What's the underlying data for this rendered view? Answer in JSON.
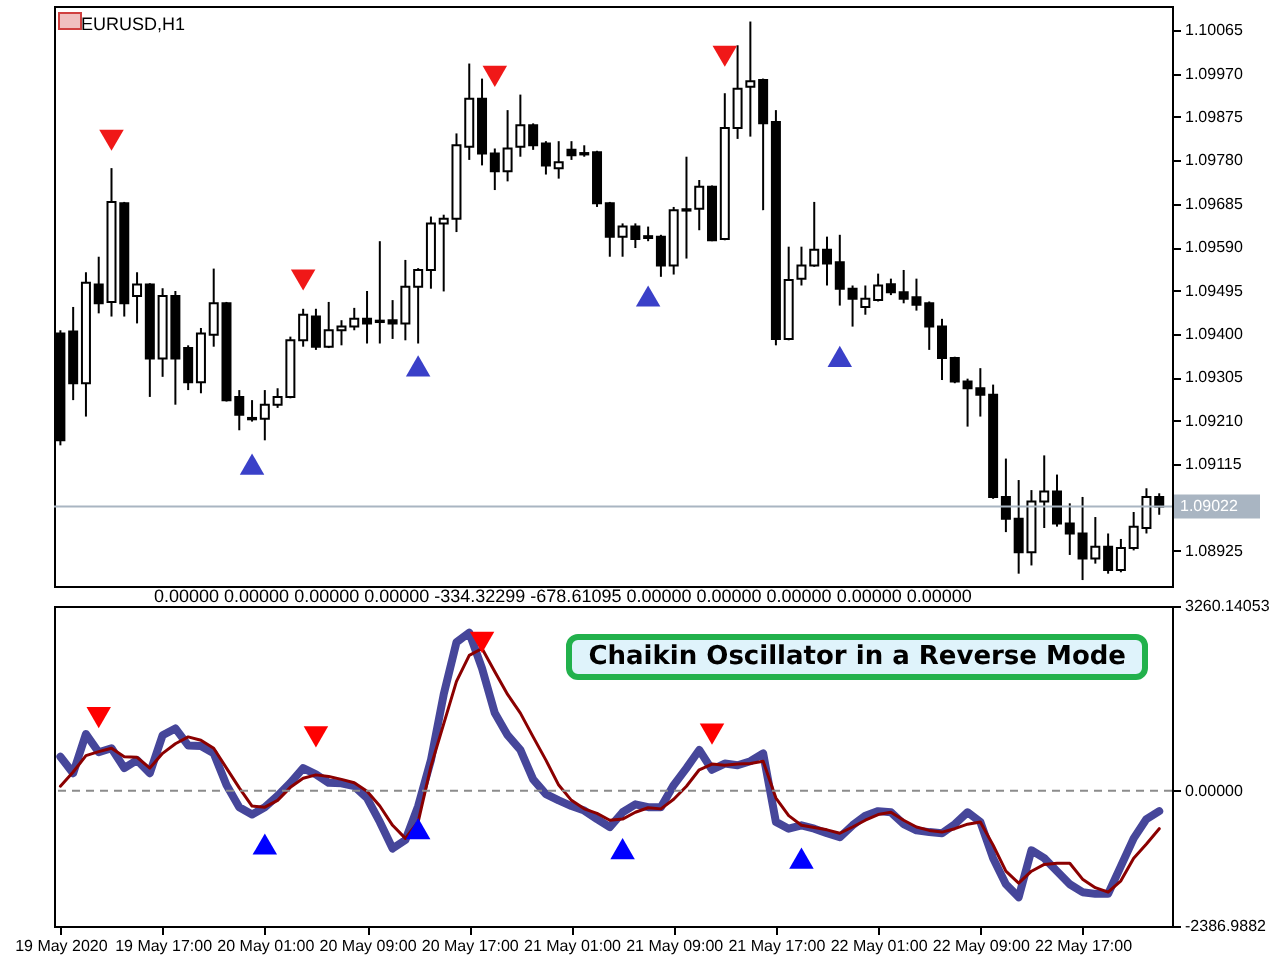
{
  "chart_data": [
    {
      "type": "candlestick",
      "title": "EURUSD,H1",
      "x": [
        "2020-05-19T09:00",
        "2020-05-19T10:00",
        "2020-05-19T11:00",
        "2020-05-19T12:00",
        "2020-05-19T13:00",
        "2020-05-19T14:00",
        "2020-05-19T15:00",
        "2020-05-19T16:00",
        "2020-05-19T17:00",
        "2020-05-19T18:00",
        "2020-05-19T19:00",
        "2020-05-19T20:00",
        "2020-05-19T21:00",
        "2020-05-19T22:00",
        "2020-05-19T23:00",
        "2020-05-20T00:00",
        "2020-05-20T01:00",
        "2020-05-20T02:00",
        "2020-05-20T03:00",
        "2020-05-20T04:00",
        "2020-05-20T05:00",
        "2020-05-20T06:00",
        "2020-05-20T07:00",
        "2020-05-20T08:00",
        "2020-05-20T09:00",
        "2020-05-20T10:00",
        "2020-05-20T11:00",
        "2020-05-20T12:00",
        "2020-05-20T13:00",
        "2020-05-20T14:00",
        "2020-05-20T15:00",
        "2020-05-20T16:00",
        "2020-05-20T17:00",
        "2020-05-20T18:00",
        "2020-05-20T19:00",
        "2020-05-20T20:00",
        "2020-05-20T21:00",
        "2020-05-20T22:00",
        "2020-05-20T23:00",
        "2020-05-21T00:00",
        "2020-05-21T01:00",
        "2020-05-21T02:00",
        "2020-05-21T03:00",
        "2020-05-21T04:00",
        "2020-05-21T05:00",
        "2020-05-21T06:00",
        "2020-05-21T07:00",
        "2020-05-21T08:00",
        "2020-05-21T09:00",
        "2020-05-21T10:00",
        "2020-05-21T11:00",
        "2020-05-21T12:00",
        "2020-05-21T13:00",
        "2020-05-21T14:00",
        "2020-05-21T15:00",
        "2020-05-21T16:00",
        "2020-05-21T17:00",
        "2020-05-21T18:00",
        "2020-05-21T19:00",
        "2020-05-21T20:00",
        "2020-05-21T21:00",
        "2020-05-21T22:00",
        "2020-05-21T23:00",
        "2020-05-22T00:00",
        "2020-05-22T01:00",
        "2020-05-22T02:00",
        "2020-05-22T03:00",
        "2020-05-22T04:00",
        "2020-05-22T05:00",
        "2020-05-22T06:00",
        "2020-05-22T07:00",
        "2020-05-22T08:00",
        "2020-05-22T09:00",
        "2020-05-22T10:00",
        "2020-05-22T11:00",
        "2020-05-22T12:00",
        "2020-05-22T13:00",
        "2020-05-22T14:00",
        "2020-05-22T15:00",
        "2020-05-22T16:00",
        "2020-05-22T17:00",
        "2020-05-22T18:00",
        "2020-05-22T19:00",
        "2020-05-22T20:00",
        "2020-05-22T21:00",
        "2020-05-22T22:00",
        "2020-05-22T23:00"
      ],
      "ohlc": [
        [
          1.09401,
          1.09408,
          1.09156,
          1.09167
        ],
        [
          1.09405,
          1.09459,
          1.09255,
          1.09292
        ],
        [
          1.09292,
          1.09535,
          1.09219,
          1.09512
        ],
        [
          1.09508,
          1.09569,
          1.09445,
          1.09467
        ],
        [
          1.0947,
          1.09763,
          1.09438,
          1.09689
        ],
        [
          1.09686,
          1.09689,
          1.09438,
          1.09467
        ],
        [
          1.09483,
          1.09535,
          1.09423,
          1.09508
        ],
        [
          1.09508,
          1.09511,
          1.09262,
          1.09346
        ],
        [
          1.09346,
          1.095,
          1.09306,
          1.09483
        ],
        [
          1.09483,
          1.09494,
          1.09245,
          1.09346
        ],
        [
          1.09369,
          1.09375,
          1.09277,
          1.09294
        ],
        [
          1.09294,
          1.09413,
          1.0927,
          1.09401
        ],
        [
          1.09398,
          1.09543,
          1.09372,
          1.09467
        ],
        [
          1.09467,
          1.0947,
          1.09252,
          1.09255
        ],
        [
          1.09262,
          1.09277,
          1.09189,
          1.09223
        ],
        [
          1.09216,
          1.09255,
          1.09208,
          1.09213
        ],
        [
          1.09214,
          1.09277,
          1.09167,
          1.09245
        ],
        [
          1.09245,
          1.09281,
          1.09238,
          1.09262
        ],
        [
          1.09262,
          1.09394,
          1.09259,
          1.09386
        ],
        [
          1.09386,
          1.09455,
          1.09372,
          1.09442
        ],
        [
          1.09438,
          1.09455,
          1.09365,
          1.09372
        ],
        [
          1.09372,
          1.0947,
          1.09369,
          1.09408
        ],
        [
          1.09408,
          1.0943,
          1.09375,
          1.09416
        ],
        [
          1.09416,
          1.09457,
          1.09408,
          1.09433
        ],
        [
          1.09433,
          1.09494,
          1.09379,
          1.09423
        ],
        [
          1.09429,
          1.09603,
          1.09379,
          1.09426
        ],
        [
          1.0943,
          1.09474,
          1.09389,
          1.09423
        ],
        [
          1.09423,
          1.09562,
          1.09386,
          1.09503
        ],
        [
          1.09503,
          1.09544,
          1.09379,
          1.0954
        ],
        [
          1.0954,
          1.09657,
          1.09499,
          1.09642
        ],
        [
          1.09642,
          1.09661,
          1.09493,
          1.09652
        ],
        [
          1.09652,
          1.09839,
          1.09623,
          1.09813
        ],
        [
          1.0981,
          1.09992,
          1.09781,
          1.09915
        ],
        [
          1.09915,
          1.09959,
          1.09769,
          1.09795
        ],
        [
          1.09795,
          1.09806,
          1.09715,
          1.09756
        ],
        [
          1.09756,
          1.0989,
          1.09734,
          1.09806
        ],
        [
          1.0981,
          1.09924,
          1.09788,
          1.09857
        ],
        [
          1.09857,
          1.09861,
          1.09803,
          1.09813
        ],
        [
          1.09817,
          1.09822,
          1.09749,
          1.09769
        ],
        [
          1.09763,
          1.09822,
          1.0974,
          1.09776
        ],
        [
          1.09803,
          1.09822,
          1.09781,
          1.09791
        ],
        [
          1.09796,
          1.09813,
          1.09788,
          1.09793
        ],
        [
          1.09798,
          1.09801,
          1.09678,
          1.09686
        ],
        [
          1.09686,
          1.09689,
          1.09569,
          1.09613
        ],
        [
          1.09613,
          1.09642,
          1.09569,
          1.09635
        ],
        [
          1.09635,
          1.09642,
          1.09588,
          1.09608
        ],
        [
          1.09614,
          1.09635,
          1.09603,
          1.0961
        ],
        [
          1.09613,
          1.09617,
          1.09525,
          1.0955
        ],
        [
          1.0955,
          1.09678,
          1.0953,
          1.09671
        ],
        [
          1.09673,
          1.09788,
          1.09565,
          1.0967
        ],
        [
          1.09674,
          1.09737,
          1.09627,
          1.09722
        ],
        [
          1.09722,
          1.09725,
          1.09603,
          1.09605
        ],
        [
          1.09608,
          1.09927,
          1.09605,
          1.09851
        ],
        [
          1.09851,
          1.10032,
          1.09827,
          1.09937
        ],
        [
          1.09941,
          1.10084,
          1.09832,
          1.09953
        ],
        [
          1.09956,
          1.09959,
          1.09671,
          1.09861
        ],
        [
          1.09864,
          1.0989,
          1.09375,
          1.09389
        ],
        [
          1.09389,
          1.09591,
          1.09386,
          1.09518
        ],
        [
          1.09521,
          1.09591,
          1.09506,
          1.0955
        ],
        [
          1.0955,
          1.09689,
          1.09547,
          1.09584
        ],
        [
          1.09584,
          1.09613,
          1.09506,
          1.09554
        ],
        [
          1.09557,
          1.09617,
          1.09462,
          1.09499
        ],
        [
          1.09499,
          1.09506,
          1.09416,
          1.09477
        ],
        [
          1.09459,
          1.09506,
          1.09442,
          1.09477
        ],
        [
          1.09474,
          1.09532,
          1.09471,
          1.09506
        ],
        [
          1.09509,
          1.09521,
          1.09485,
          1.09491
        ],
        [
          1.09491,
          1.0954,
          1.09467,
          1.09477
        ],
        [
          1.0948,
          1.09521,
          1.09451,
          1.09464
        ],
        [
          1.09467,
          1.09471,
          1.09365,
          1.09416
        ],
        [
          1.09416,
          1.09433,
          1.09299,
          1.09347
        ],
        [
          1.09347,
          1.0935,
          1.09292,
          1.09296
        ],
        [
          1.09296,
          1.09302,
          1.09197,
          1.09281
        ],
        [
          1.09281,
          1.09325,
          1.09219,
          1.09267
        ],
        [
          1.09267,
          1.09289,
          1.09039,
          1.09043
        ],
        [
          1.09043,
          1.09127,
          1.08966,
          1.08995
        ],
        [
          1.08995,
          1.0908,
          1.08875,
          1.08922
        ],
        [
          1.08922,
          1.09058,
          1.08893,
          1.09033
        ],
        [
          1.09033,
          1.09134,
          1.08975,
          1.09055
        ],
        [
          1.09055,
          1.09092,
          1.08978,
          1.08985
        ],
        [
          1.08985,
          1.09029,
          1.08916,
          1.08963
        ],
        [
          1.08963,
          1.09043,
          1.08861,
          1.08908
        ],
        [
          1.08908,
          1.08999,
          1.08897,
          1.08934
        ],
        [
          1.08934,
          1.08963,
          1.08875,
          1.08883
        ],
        [
          1.08883,
          1.08951,
          1.08878,
          1.08931
        ],
        [
          1.08931,
          1.0901,
          1.08926,
          1.08978
        ],
        [
          1.08975,
          1.09062,
          1.08963,
          1.09043
        ],
        [
          1.09043,
          1.09051,
          1.09004,
          1.09022
        ]
      ],
      "series": [
        {
          "type": "scatter",
          "color": "#f01818",
          "marker": "triangle",
          "x": [
            "2020-05-19T13:00",
            "2020-05-20T04:00",
            "2020-05-20T19:00",
            "2020-05-21T13:00"
          ],
          "values": [
            1.09824,
            1.09518,
            1.09964,
            1.10008
          ]
        },
        {
          "type": "scatter",
          "color": "#3a40c8",
          "marker": "triangle",
          "x": [
            "2020-05-20T00:00",
            "2020-05-20T13:00",
            "2020-05-21T07:00",
            "2020-05-21T22:00"
          ],
          "values": [
            1.09115,
            1.0933,
            1.09483,
            1.09351
          ]
        }
      ],
      "xlim": [
        "2020-05-19T08:30",
        "2020-05-23T00:00"
      ],
      "ylim": [
        1.08848,
        1.10118
      ],
      "yticks": [
        1.10065,
        {
          "value": 1.0997,
          "label": "1.09970"
        },
        1.09875,
        {
          "value": 1.0978,
          "label": "1.09780"
        },
        1.09685,
        {
          "value": 1.0959,
          "label": "1.09590"
        },
        1.09495,
        {
          "value": 1.094,
          "label": "1.09400"
        },
        1.09305,
        {
          "value": 1.0921,
          "label": "1.09210"
        },
        1.09115,
        1.08925
      ],
      "ref_lines": [
        {
          "axis": "y",
          "value": 1.09022,
          "label": "1.09022",
          "color": "#a9b5c2"
        }
      ],
      "tick_labels": "y"
    },
    {
      "type": "line",
      "x": [
        "2020-05-19T09:00",
        "2020-05-19T10:00",
        "2020-05-19T11:00",
        "2020-05-19T12:00",
        "2020-05-19T13:00",
        "2020-05-19T14:00",
        "2020-05-19T15:00",
        "2020-05-19T16:00",
        "2020-05-19T17:00",
        "2020-05-19T18:00",
        "2020-05-19T19:00",
        "2020-05-19T20:00",
        "2020-05-19T21:00",
        "2020-05-19T22:00",
        "2020-05-19T23:00",
        "2020-05-20T00:00",
        "2020-05-20T01:00",
        "2020-05-20T02:00",
        "2020-05-20T03:00",
        "2020-05-20T04:00",
        "2020-05-20T05:00",
        "2020-05-20T06:00",
        "2020-05-20T07:00",
        "2020-05-20T08:00",
        "2020-05-20T09:00",
        "2020-05-20T10:00",
        "2020-05-20T11:00",
        "2020-05-20T12:00",
        "2020-05-20T13:00",
        "2020-05-20T14:00",
        "2020-05-20T15:00",
        "2020-05-20T16:00",
        "2020-05-20T17:00",
        "2020-05-20T18:00",
        "2020-05-20T19:00",
        "2020-05-20T20:00",
        "2020-05-20T21:00",
        "2020-05-20T22:00",
        "2020-05-20T23:00",
        "2020-05-21T00:00",
        "2020-05-21T01:00",
        "2020-05-21T02:00",
        "2020-05-21T03:00",
        "2020-05-21T04:00",
        "2020-05-21T05:00",
        "2020-05-21T06:00",
        "2020-05-21T07:00",
        "2020-05-21T08:00",
        "2020-05-21T09:00",
        "2020-05-21T10:00",
        "2020-05-21T11:00",
        "2020-05-21T12:00",
        "2020-05-21T13:00",
        "2020-05-21T14:00",
        "2020-05-21T15:00",
        "2020-05-21T16:00",
        "2020-05-21T17:00",
        "2020-05-21T18:00",
        "2020-05-21T19:00",
        "2020-05-21T20:00",
        "2020-05-21T21:00",
        "2020-05-21T22:00",
        "2020-05-21T23:00",
        "2020-05-22T00:00",
        "2020-05-22T01:00",
        "2020-05-22T02:00",
        "2020-05-22T03:00",
        "2020-05-22T04:00",
        "2020-05-22T05:00",
        "2020-05-22T06:00",
        "2020-05-22T07:00",
        "2020-05-22T08:00",
        "2020-05-22T09:00",
        "2020-05-22T10:00",
        "2020-05-22T11:00",
        "2020-05-22T12:00",
        "2020-05-22T13:00",
        "2020-05-22T14:00",
        "2020-05-22T15:00",
        "2020-05-22T16:00",
        "2020-05-22T17:00",
        "2020-05-22T18:00",
        "2020-05-22T19:00",
        "2020-05-22T20:00",
        "2020-05-22T21:00",
        "2020-05-22T22:00",
        "2020-05-22T23:00"
      ],
      "series": [
        {
          "color": "#46469a",
          "values": [
            600,
            310,
            1000,
            680,
            750,
            400,
            540,
            310,
            980,
            1100,
            800,
            790,
            660,
            100,
            -290,
            -420,
            -290,
            -90,
            140,
            400,
            290,
            140,
            130,
            80,
            -130,
            -550,
            -1020,
            -870,
            -270,
            540,
            1700,
            2620,
            2790,
            2160,
            1370,
            980,
            720,
            200,
            -60,
            -170,
            -270,
            -350,
            -500,
            -640,
            -380,
            -240,
            -290,
            -290,
            100,
            400,
            720,
            370,
            480,
            450,
            520,
            660,
            -550,
            -670,
            -610,
            -670,
            -750,
            -820,
            -610,
            -440,
            -360,
            -380,
            -590,
            -700,
            -730,
            -750,
            -590,
            -380,
            -550,
            -1190,
            -1650,
            -1880,
            -1050,
            -1190,
            -1420,
            -1650,
            -1790,
            -1820,
            -1820,
            -1330,
            -840,
            -500,
            -360
          ]
        },
        {
          "color": "#8b0000",
          "values": [
            80,
            330,
            620,
            690,
            750,
            600,
            590,
            400,
            660,
            830,
            950,
            890,
            750,
            400,
            50,
            -270,
            -290,
            -170,
            60,
            220,
            280,
            250,
            200,
            140,
            -10,
            -270,
            -610,
            -840,
            -550,
            430,
            1180,
            1930,
            2390,
            2510,
            2100,
            1700,
            1370,
            950,
            540,
            100,
            -170,
            -320,
            -400,
            -520,
            -500,
            -380,
            -300,
            -320,
            -150,
            80,
            370,
            470,
            450,
            470,
            480,
            520,
            -130,
            -440,
            -610,
            -650,
            -690,
            -750,
            -640,
            -520,
            -420,
            -380,
            -520,
            -640,
            -700,
            -730,
            -670,
            -590,
            -550,
            -960,
            -1420,
            -1630,
            -1420,
            -1300,
            -1280,
            -1280,
            -1560,
            -1710,
            -1790,
            -1590,
            -1190,
            -940,
            -670
          ]
        },
        {
          "type": "scatter",
          "color": "#ff0000",
          "marker": "triangle",
          "x": [
            "2020-05-19T12:00",
            "2020-05-20T05:00",
            "2020-05-20T18:00",
            "2020-05-21T12:00"
          ],
          "values": [
            1290,
            950,
            2620,
            1000
          ]
        },
        {
          "type": "scatter",
          "color": "#0000ff",
          "marker": "triangle",
          "x": [
            "2020-05-20T01:00",
            "2020-05-20T13:00",
            "2020-05-21T05:00",
            "2020-05-21T19:00"
          ],
          "values": [
            -940,
            -670,
            -1020,
            -1190
          ]
        }
      ],
      "xlim": [
        "2020-05-19T08:30",
        "2020-05-23T00:00"
      ],
      "xticks": [
        {
          "value": "2020-05-19T09:00",
          "label": "19 May 2020"
        },
        {
          "value": "2020-05-19T17:00",
          "label": "19 May 17:00"
        },
        {
          "value": "2020-05-20T01:00",
          "label": "20 May 01:00"
        },
        {
          "value": "2020-05-20T09:00",
          "label": "20 May 09:00"
        },
        {
          "value": "2020-05-20T17:00",
          "label": "20 May 17:00"
        },
        {
          "value": "2020-05-21T01:00",
          "label": "21 May 01:00"
        },
        {
          "value": "2020-05-21T09:00",
          "label": "21 May 09:00"
        },
        {
          "value": "2020-05-21T17:00",
          "label": "21 May 17:00"
        },
        {
          "value": "2020-05-22T01:00",
          "label": "22 May 01:00"
        },
        {
          "value": "2020-05-22T09:00",
          "label": "22 May 09:00"
        },
        {
          "value": "2020-05-22T17:00",
          "label": "22 May 17:00"
        }
      ],
      "ylim": [
        -2386.9882,
        3260.14053
      ],
      "yticks": [
        3260.14053,
        {
          "value": 0,
          "label": "0.00000"
        },
        -2386.9882
      ],
      "ref_lines": [
        {
          "axis": "y",
          "value": 0,
          "color": "#8c8c8c",
          "line_style": "dashed"
        }
      ],
      "annotations": [
        "0.00000 0.00000 0.00000 0.00000 -334.32299 -678.61095 0.00000 0.00000 0.00000 0.00000 0.00000",
        "Chaikin Oscillator in a Reverse Mode"
      ]
    }
  ]
}
